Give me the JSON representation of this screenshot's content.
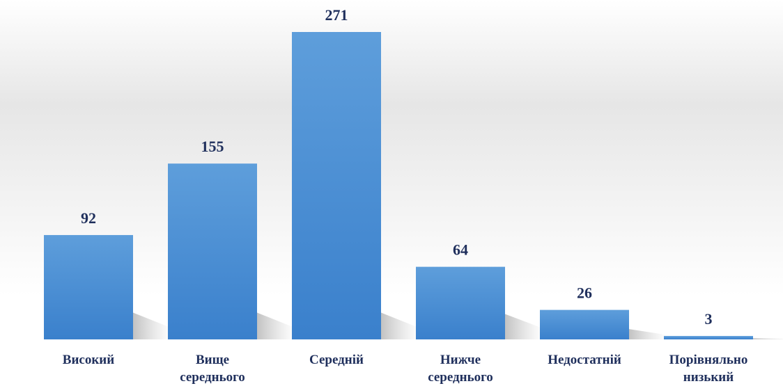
{
  "chart_data": {
    "type": "bar",
    "categories": [
      "Високий",
      "Вище середнього",
      "Середній",
      "Нижче середнього",
      "Недостатній",
      "Порівняльно низький"
    ],
    "values": [
      92,
      155,
      271,
      64,
      26,
      3
    ],
    "color": "#4a8fd6"
  }
}
